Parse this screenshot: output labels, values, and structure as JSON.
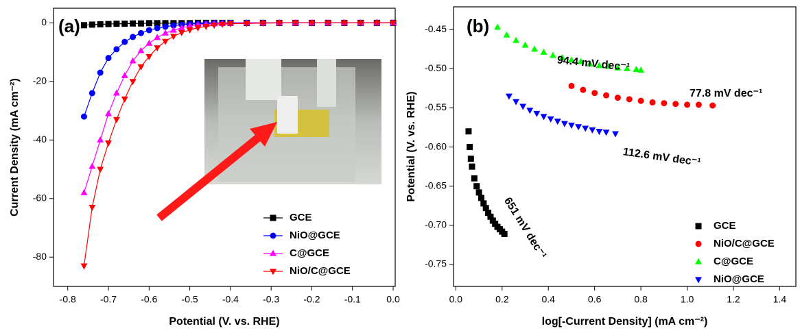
{
  "chart_data": [
    {
      "type": "line",
      "panel_label": "(a)",
      "x_label": "Potential (V. vs. RHE)",
      "y_label": "Current Density (mA cm⁻²)",
      "xlim": [
        -0.835,
        0.005
      ],
      "ylim": [
        -90,
        5
      ],
      "xticks": [
        -0.8,
        -0.7,
        -0.6,
        -0.5,
        -0.4,
        -0.3,
        -0.2,
        -0.1,
        {
          "value": 0,
          "label": "0.0"
        }
      ],
      "yticks": [
        0,
        -20,
        -40,
        -60,
        -80
      ],
      "legend": "lower right",
      "x": [
        -0.76,
        -0.74,
        -0.72,
        -0.7,
        -0.68,
        -0.66,
        -0.64,
        -0.62,
        -0.6,
        -0.58,
        -0.56,
        -0.54,
        -0.52,
        -0.5,
        -0.48,
        -0.46,
        -0.44,
        -0.42,
        -0.4,
        -0.36,
        -0.32,
        -0.28,
        -0.24,
        -0.2,
        -0.16,
        -0.12,
        -0.08,
        -0.04,
        0.0
      ],
      "series": [
        {
          "name": "GCE",
          "color": "#000000",
          "marker": "square",
          "values": [
            -0.8,
            -0.6,
            -0.5,
            -0.4,
            -0.3,
            -0.3,
            -0.2,
            -0.2,
            -0.1,
            -0.1,
            -0.1,
            -0.1,
            -0.1,
            -0.1,
            0,
            0,
            0,
            0,
            0,
            0,
            0,
            0,
            0,
            0,
            0,
            0,
            0,
            0,
            0
          ]
        },
        {
          "name": "NiO@GCE",
          "color": "#0000ff",
          "marker": "circle",
          "values": [
            -32,
            -24,
            -17,
            -12,
            -9,
            -6.5,
            -4.8,
            -3.5,
            -2.5,
            -1.8,
            -1.3,
            -0.9,
            -0.6,
            -0.4,
            -0.3,
            -0.2,
            -0.1,
            -0.1,
            0,
            0,
            0,
            0,
            0,
            0,
            0,
            0,
            0,
            0,
            0
          ]
        },
        {
          "name": "C@GCE",
          "color": "#ff00ff",
          "marker": "triangle-up",
          "values": [
            -58,
            -49,
            -40,
            -31,
            -24,
            -18,
            -13,
            -9.5,
            -7,
            -5,
            -3.5,
            -2.5,
            -1.7,
            -1.1,
            -0.7,
            -0.5,
            -0.3,
            -0.2,
            -0.1,
            0,
            0,
            0,
            0,
            0,
            0,
            0,
            0,
            0,
            0
          ]
        },
        {
          "name": "NiO/C@GCE",
          "color": "#ff0000",
          "marker": "triangle-down",
          "values": [
            -83,
            -63,
            -50,
            -41,
            -33,
            -26,
            -20,
            -15,
            -11.5,
            -8.5,
            -6.3,
            -4.6,
            -3.3,
            -2.4,
            -1.7,
            -1.2,
            -0.8,
            -0.5,
            -0.3,
            -0.2,
            -0.1,
            0,
            0,
            0,
            0,
            0,
            0,
            0,
            0
          ]
        }
      ]
    },
    {
      "type": "scatter",
      "panel_label": "(b)",
      "x_label": "log[-Current Density] (mA cm⁻²)",
      "y_label": "Potential (V. vs. RHE)",
      "xlim": [
        -0.01,
        1.47
      ],
      "ylim": [
        -0.778,
        -0.421
      ],
      "xticks": [
        {
          "value": 0,
          "label": "0.0"
        },
        0.2,
        0.4,
        0.6,
        0.8,
        {
          "value": 1,
          "label": "1.0"
        },
        1.2,
        1.4
      ],
      "yticks": [
        -0.45,
        {
          "value": -0.5,
          "label": "-0.50"
        },
        -0.55,
        {
          "value": -0.6,
          "label": "-0.60"
        },
        -0.65,
        {
          "value": -0.7,
          "label": "-0.70"
        },
        -0.75
      ],
      "legend": "lower right",
      "annotations": [
        "94.4 mV dec⁻¹",
        "77.8 mV dec⁻¹",
        "112.6 mV dec⁻¹",
        "651 mV dec⁻¹"
      ],
      "series": [
        {
          "name": "GCE",
          "color": "#000000",
          "marker": "square",
          "x": [
            0.055,
            0.06,
            0.065,
            0.07,
            0.08,
            0.09,
            0.1,
            0.11,
            0.12,
            0.13,
            0.14,
            0.15,
            0.16,
            0.17,
            0.18,
            0.19,
            0.2,
            0.21
          ],
          "values": [
            -0.58,
            -0.6,
            -0.615,
            -0.625,
            -0.64,
            -0.65,
            -0.658,
            -0.665,
            -0.672,
            -0.678,
            -0.684,
            -0.689,
            -0.694,
            -0.698,
            -0.702,
            -0.705,
            -0.708,
            -0.711
          ]
        },
        {
          "name": "NiO/C@GCE",
          "color": "#ff0000",
          "marker": "circle",
          "x": [
            0.5,
            0.55,
            0.6,
            0.65,
            0.7,
            0.75,
            0.8,
            0.85,
            0.9,
            0.95,
            1.0,
            1.05,
            1.11
          ],
          "values": [
            -0.522,
            -0.527,
            -0.531,
            -0.534,
            -0.537,
            -0.539,
            -0.541,
            -0.543,
            -0.544,
            -0.545,
            -0.546,
            -0.546,
            -0.547
          ]
        },
        {
          "name": "C@GCE",
          "color": "#00ff00",
          "marker": "triangle-up",
          "x": [
            0.18,
            0.22,
            0.26,
            0.3,
            0.34,
            0.38,
            0.42,
            0.46,
            0.5,
            0.54,
            0.58,
            0.62,
            0.66,
            0.7,
            0.74,
            0.78,
            0.8
          ],
          "values": [
            -0.447,
            -0.457,
            -0.464,
            -0.47,
            -0.475,
            -0.479,
            -0.483,
            -0.486,
            -0.489,
            -0.491,
            -0.494,
            -0.496,
            -0.497,
            -0.499,
            -0.5,
            -0.501,
            -0.502
          ]
        },
        {
          "name": "NiO@GCE",
          "color": "#0000ff",
          "marker": "triangle-down",
          "x": [
            0.23,
            0.26,
            0.29,
            0.32,
            0.35,
            0.38,
            0.41,
            0.44,
            0.47,
            0.5,
            0.53,
            0.56,
            0.59,
            0.62,
            0.65,
            0.69
          ],
          "values": [
            -0.535,
            -0.542,
            -0.548,
            -0.553,
            -0.557,
            -0.561,
            -0.564,
            -0.567,
            -0.57,
            -0.572,
            -0.574,
            -0.576,
            -0.578,
            -0.58,
            -0.581,
            -0.583
          ]
        }
      ]
    }
  ]
}
